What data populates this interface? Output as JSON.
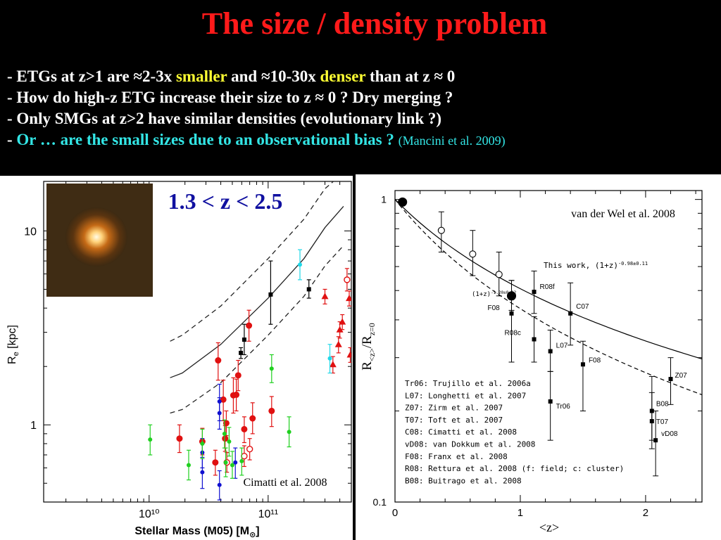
{
  "slide": {
    "title": "The size / density problem",
    "bullets": [
      {
        "dash": "- ",
        "parts": [
          {
            "text": "ETGs at z>1 are ≈2-3x ",
            "style": "plain"
          },
          {
            "text": "smaller",
            "style": "yellow"
          },
          {
            "text": " and ≈10-30x ",
            "style": "plain"
          },
          {
            "text": "denser",
            "style": "yellow"
          },
          {
            "text": " than at z ≈ 0",
            "style": "plain"
          }
        ]
      },
      {
        "dash": "- ",
        "parts": [
          {
            "text": "How do high-z ETG increase their size to z ≈ 0 ? Dry merging ?",
            "style": "plain"
          }
        ]
      },
      {
        "dash": "- ",
        "parts": [
          {
            "text": "Only SMGs at z>2 have similar densities (evolutionary link ?)",
            "style": "plain"
          }
        ]
      },
      {
        "dash": "- ",
        "parts": [
          {
            "text": "Or … are the small sizes due to an observational bias ? ",
            "style": "cyan"
          },
          {
            "text": "(Mancini et al. 2009)",
            "style": "cite"
          }
        ]
      }
    ]
  },
  "colors": {
    "title": "#ff1a1a",
    "highlight_yellow": "#ffff33",
    "highlight_cyan": "#33e6e6",
    "red": "#e01010",
    "blue": "#1010d0",
    "green": "#20d020",
    "cyan_pt": "#20d8e8",
    "black": "#000000"
  },
  "chart_data": [
    {
      "type": "scatter",
      "annotation": "1.3 < z < 2.5",
      "credit": "Cimatti et al. 2008",
      "xlabel": "Stellar Mass (M05) [M",
      "xlabel_sub": "⊙",
      "xlabel_end": "]",
      "ylabel": "R",
      "ylabel_sub": "e",
      "ylabel_unit": " [kpc]",
      "x_scale": "log",
      "y_scale": "log",
      "xlim": [
        1300000000.0,
        500000000000.0
      ],
      "ylim": [
        0.4,
        18
      ],
      "x_ticks": [
        {
          "v": 10000000000.0,
          "label": "10¹⁰"
        },
        {
          "v": 100000000000.0,
          "label": "10¹¹"
        }
      ],
      "y_ticks": [
        {
          "v": 1,
          "label": "1"
        },
        {
          "v": 10,
          "label": "10"
        }
      ],
      "inset_image": "galaxy-cutout",
      "relation": {
        "solid": [
          [
            15000000000.0,
            1.75
          ],
          [
            19000000000.0,
            1.85
          ],
          [
            40000000000.0,
            2.6
          ],
          [
            100000000000.0,
            4.5
          ],
          [
            200000000000.0,
            7.2
          ],
          [
            300000000000.0,
            10.4
          ],
          [
            430000000000.0,
            13.4
          ]
        ],
        "dashed_upper": [
          [
            15000000000.0,
            2.7
          ],
          [
            19000000000.0,
            2.9
          ],
          [
            40000000000.0,
            4.1
          ],
          [
            100000000000.0,
            7.2
          ],
          [
            200000000000.0,
            11.5
          ],
          [
            300000000000.0,
            16.5
          ],
          [
            430000000000.0,
            20
          ]
        ],
        "dashed_lower": [
          [
            15000000000.0,
            1.15
          ],
          [
            19000000000.0,
            1.2
          ],
          [
            40000000000.0,
            1.65
          ],
          [
            100000000000.0,
            2.9
          ],
          [
            200000000000.0,
            4.6
          ],
          [
            300000000000.0,
            6.6
          ],
          [
            430000000000.0,
            8.4
          ]
        ]
      },
      "series": [
        {
          "color": "red",
          "marker": "circle",
          "points": [
            [
              18000000000.0,
              0.85,
              0.72,
              1.0
            ],
            [
              28000000000.0,
              0.82,
              0.7,
              0.96
            ],
            [
              38000000000.0,
              2.15,
              1.7,
              2.65
            ],
            [
              36000000000.0,
              0.64,
              0.55,
              0.74
            ],
            [
              42000000000.0,
              1.35,
              1.05,
              1.7
            ],
            [
              44500000000.0,
              1.02,
              0.88,
              1.18
            ],
            [
              43500000000.0,
              0.85,
              0.73,
              0.99
            ],
            [
              51000000000.0,
              1.42,
              1.15,
              1.75
            ],
            [
              54000000000.0,
              1.43,
              1.18,
              1.72
            ],
            [
              56000000000.0,
              1.8,
              1.5,
              2.15
            ],
            [
              63000000000.0,
              0.95,
              0.81,
              1.1
            ],
            [
              69000000000.0,
              3.25,
              2.7,
              3.9
            ],
            [
              74000000000.0,
              1.08,
              0.9,
              1.3
            ],
            [
              107000000000.0,
              1.18,
              0.98,
              1.4
            ]
          ]
        },
        {
          "color": "red",
          "marker": "open-circle",
          "points": [
            [
              45000000000.0,
              0.64,
              0.57,
              0.72
            ],
            [
              63000000000.0,
              0.69,
              0.61,
              0.78
            ],
            [
              70000000000.0,
              0.75,
              0.66,
              0.85
            ],
            [
              460000000000.0,
              5.6,
              4.9,
              6.4
            ]
          ]
        },
        {
          "color": "red",
          "marker": "triangle",
          "points": [
            [
              300000000000.0,
              4.6,
              4.2,
              5.0
            ],
            [
              350000000000.0,
              2.05,
              1.85,
              2.25
            ],
            [
              390000000000.0,
              2.6,
              2.35,
              2.85
            ],
            [
              400000000000.0,
              3.1,
              2.8,
              3.4
            ],
            [
              420000000000.0,
              3.4,
              3.1,
              3.7
            ],
            [
              480000000000.0,
              4.5,
              4.1,
              4.9
            ],
            [
              490000000000.0,
              2.3,
              2.1,
              2.5
            ],
            [
              550000000000.0,
              2.7,
              2.5,
              2.9
            ]
          ]
        },
        {
          "color": "blue",
          "marker": "circle",
          "points": [
            [
              28000000000.0,
              0.72,
              0.6,
              0.85
            ],
            [
              28000000000.0,
              0.57,
              0.47,
              0.68
            ],
            [
              39000000000.0,
              1.32,
              1.05,
              1.62
            ],
            [
              39000000000.0,
              1.15,
              0.95,
              1.38
            ],
            [
              39000000000.0,
              0.49,
              0.41,
              0.58
            ],
            [
              53000000000.0,
              0.64,
              0.53,
              0.76
            ]
          ]
        },
        {
          "color": "green",
          "marker": "circle",
          "points": [
            [
              10200000000.0,
              0.84,
              0.7,
              1.0
            ],
            [
              21500000000.0,
              0.62,
              0.52,
              0.74
            ],
            [
              28000000000.0,
              0.8,
              0.67,
              0.95
            ],
            [
              43000000000.0,
              0.9,
              0.76,
              1.06
            ],
            [
              44000000000.0,
              0.64,
              0.54,
              0.76
            ],
            [
              47000000000.0,
              0.82,
              0.69,
              0.97
            ],
            [
              50000000000.0,
              0.62,
              0.53,
              0.73
            ],
            [
              60000000000.0,
              0.65,
              0.55,
              0.76
            ],
            [
              107000000000.0,
              1.95,
              1.65,
              2.3
            ],
            [
              150000000000.0,
              0.92,
              0.77,
              1.1
            ]
          ]
        },
        {
          "color": "cyan_pt",
          "marker": "circle",
          "points": [
            [
              185000000000.0,
              6.7,
              5.6,
              8.0
            ],
            [
              330000000000.0,
              2.2,
              1.85,
              2.6
            ]
          ]
        },
        {
          "color": "black",
          "marker": "square",
          "points": [
            [
              59000000000.0,
              2.35,
              2.2,
              2.5
            ],
            [
              63000000000.0,
              2.75,
              2.3,
              3.3
            ],
            [
              105000000000.0,
              4.7,
              3.3,
              7.0
            ],
            [
              220000000000.0,
              5.0,
              4.5,
              5.6
            ]
          ]
        }
      ]
    },
    {
      "type": "scatter",
      "credit": "van der Wel et al. 2008",
      "xlabel": "<z>",
      "ylabel": "R",
      "ylabel_sub1": "<z>",
      "ylabel_mid": "/R",
      "ylabel_sub2": "z=0",
      "x_scale": "linear",
      "y_scale": "log",
      "xlim": [
        0,
        2.45
      ],
      "ylim": [
        0.1,
        1.07
      ],
      "x_ticks": [
        {
          "v": 0,
          "label": "0"
        },
        {
          "v": 1,
          "label": "1"
        },
        {
          "v": 2,
          "label": "2"
        }
      ],
      "y_ticks": [
        {
          "v": 0.1,
          "label": "0.1"
        },
        {
          "v": 1,
          "label": "1"
        }
      ],
      "fits": [
        {
          "style": "solid",
          "label": "This work, (1+z)",
          "exponent": "-0.98±0.11",
          "k": 0.98
        },
        {
          "style": "dashed",
          "label": "(1+z)",
          "exponent": "-1.20±0.12",
          "k": 1.2
        }
      ],
      "this_work_points": [
        {
          "z": 0.06,
          "r": 0.98,
          "lo": 0.98,
          "hi": 0.98,
          "fill": "filled",
          "size": "large"
        },
        {
          "z": 0.37,
          "r": 0.79,
          "lo": 0.67,
          "hi": 0.91,
          "fill": "open"
        },
        {
          "z": 0.62,
          "r": 0.66,
          "lo": 0.56,
          "hi": 0.79,
          "fill": "open"
        },
        {
          "z": 0.83,
          "r": 0.565,
          "lo": 0.48,
          "hi": 0.67,
          "fill": "open"
        },
        {
          "z": 0.93,
          "r": 0.48,
          "lo": 0.43,
          "hi": 0.54,
          "fill": "filled",
          "size": "large"
        }
      ],
      "literature_points": [
        {
          "label": "R08f",
          "z": 1.11,
          "r": 0.495,
          "lo": 0.42,
          "hi": 0.58
        },
        {
          "label": "F08",
          "z": 0.93,
          "r": 0.42,
          "lo": 0.29,
          "hi": 0.54
        },
        {
          "label": "C07",
          "z": 1.4,
          "r": 0.42,
          "lo": 0.33,
          "hi": 0.53
        },
        {
          "label": "R08c",
          "z": 1.11,
          "r": 0.345,
          "lo": 0.29,
          "hi": 0.41
        },
        {
          "label": "L07",
          "z": 1.24,
          "r": 0.315,
          "lo": 0.27,
          "hi": 0.37
        },
        {
          "label": "F08",
          "z": 1.5,
          "r": 0.285,
          "lo": 0.2,
          "hi": 0.34
        },
        {
          "label": "Tr06",
          "z": 1.24,
          "r": 0.215,
          "lo": 0.16,
          "hi": 0.27
        },
        {
          "label": "Z07",
          "z": 2.2,
          "r": 0.255,
          "lo": 0.21,
          "hi": 0.3
        },
        {
          "label": "B08",
          "z": 2.05,
          "r": 0.2,
          "lo": 0.16,
          "hi": 0.26
        },
        {
          "label": "T07",
          "z": 2.05,
          "r": 0.185,
          "lo": 0.15,
          "hi": 0.23
        },
        {
          "label": "vD08",
          "z": 2.08,
          "r": 0.16,
          "lo": 0.122,
          "hi": 0.2
        }
      ],
      "this_work_label": "This work, (1+z)",
      "legend": [
        "Tr06: Trujillo et al. 2006a",
        "L07:  Longhetti et al. 2007",
        "Z07:  Zirm et al. 2007",
        "T07:  Toft et al. 2007",
        "C08:  Cimatti et al. 2008",
        "vD08: van Dokkum et al. 2008",
        "F08:  Franx et al. 2008",
        "R08:  Rettura et al. 2008 (f: field; c: cluster)",
        "B08:  Buitrago et al. 2008"
      ]
    }
  ]
}
